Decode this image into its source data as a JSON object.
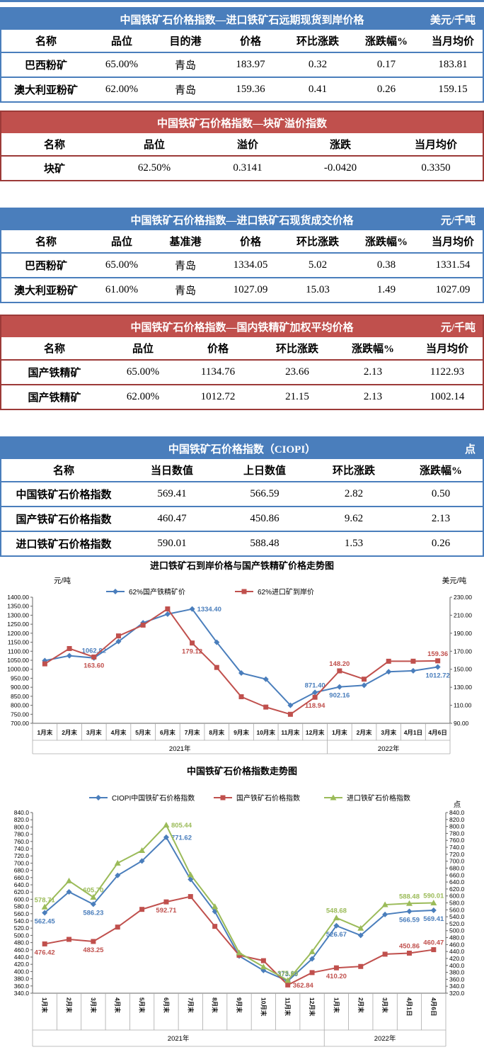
{
  "colors": {
    "blue_header": "#4a7ebc",
    "red_header": "#c0504d",
    "red_border": "#9c3a38",
    "series_blue": "#4a7ebc",
    "series_red": "#c0504d",
    "series_green": "#9bbb59"
  },
  "tables": [
    {
      "theme": "blue",
      "title": "中国铁矿石价格指数—进口铁矿石远期现货到岸价格",
      "unit": "美元/千吨",
      "columns": [
        "名称",
        "品位",
        "目的港",
        "价格",
        "环比涨跌",
        "涨跌幅%",
        "当月均价"
      ],
      "rows": [
        [
          "巴西粉矿",
          "65.00%",
          "青岛",
          "183.97",
          "0.32",
          "0.17",
          "183.81"
        ],
        [
          "澳大利亚粉矿",
          "62.00%",
          "青岛",
          "159.36",
          "0.41",
          "0.26",
          "159.15"
        ]
      ]
    },
    {
      "theme": "red",
      "title": "中国铁矿石价格指数—块矿溢价指数",
      "unit": "",
      "columns": [
        "名称",
        "品位",
        "溢价",
        "涨跌",
        "当月均价"
      ],
      "rows": [
        [
          "块矿",
          "62.50%",
          "0.3141",
          "-0.0420",
          "0.3350"
        ]
      ]
    },
    {
      "theme": "blue",
      "title": "中国铁矿石价格指数—进口铁矿石现货成交价格",
      "unit": "元/千吨",
      "columns": [
        "名称",
        "品位",
        "基准港",
        "价格",
        "环比涨跌",
        "涨跌幅%",
        "当月均价"
      ],
      "rows": [
        [
          "巴西粉矿",
          "65.00%",
          "青岛",
          "1334.05",
          "5.02",
          "0.38",
          "1331.54"
        ],
        [
          "澳大利亚粉矿",
          "61.00%",
          "青岛",
          "1027.09",
          "15.03",
          "1.49",
          "1027.09"
        ]
      ]
    },
    {
      "theme": "red",
      "title": "中国铁矿石价格指数—国内铁精矿加权平均价格",
      "unit": "元/千吨",
      "columns": [
        "名称",
        "品位",
        "价格",
        "环比涨跌",
        "涨跌幅%",
        "当月均价"
      ],
      "rows": [
        [
          "国产铁精矿",
          "65.00%",
          "1134.76",
          "23.66",
          "2.13",
          "1122.93"
        ],
        [
          "国产铁精矿",
          "62.00%",
          "1012.72",
          "21.15",
          "2.13",
          "1002.14"
        ]
      ]
    },
    {
      "theme": "blue",
      "title": "中国铁矿石价格指数（CIOPI）",
      "unit": "点",
      "columns": [
        "名称",
        "当日数值",
        "上日数值",
        "环比涨跌",
        "涨跌幅%"
      ],
      "rows": [
        [
          "中国铁矿石价格指数",
          "569.41",
          "566.59",
          "2.82",
          "0.50"
        ],
        [
          "国产铁矿石价格指数",
          "460.47",
          "450.86",
          "9.62",
          "2.13"
        ],
        [
          "进口铁矿石价格指数",
          "590.01",
          "588.48",
          "1.53",
          "0.26"
        ]
      ]
    }
  ],
  "chart_data": [
    {
      "type": "line",
      "title": "进口铁矿石到岸价格与国产铁精矿价格走势图",
      "grid": false,
      "legend_position": "top",
      "left_axis": {
        "unit": "元/吨",
        "min": 700,
        "max": 1400,
        "step": 50,
        "decimals": 2
      },
      "right_axis": {
        "unit": "美元/吨",
        "min": 90,
        "max": 230,
        "step": 20,
        "decimals": 2
      },
      "categories": [
        "1月末",
        "2月末",
        "3月末",
        "4月末",
        "5月末",
        "6月末",
        "7月末",
        "8月末",
        "9月末",
        "10月末",
        "11月末",
        "12月末",
        "1月末",
        "2月末",
        "3月末",
        "4月1日",
        "4月6日"
      ],
      "year_groups": [
        {
          "label": "2021年",
          "count": 12
        },
        {
          "label": "2022年",
          "count": 5
        }
      ],
      "series": [
        {
          "name": "62%国产铁精矿价",
          "color": "#4a7ebc",
          "marker": "diamond",
          "axis": "left",
          "values": [
            1048,
            1075,
            1062.82,
            1154,
            1258,
            1306,
            1334.4,
            1150,
            979,
            945,
            800,
            871.4,
            902.16,
            911,
            986,
            991.6,
            1012.72
          ],
          "point_labels": [
            {
              "i": 2,
              "text": "1062.82",
              "pos": "above"
            },
            {
              "i": 6,
              "text": "1334.40",
              "pos": "right"
            },
            {
              "i": 11,
              "text": "871.40",
              "pos": "above"
            },
            {
              "i": 12,
              "text": "902.16",
              "pos": "below"
            },
            {
              "i": 16,
              "text": "1012.72",
              "pos": "below"
            }
          ]
        },
        {
          "name": "62%进口矿到岸价",
          "color": "#c0504d",
          "marker": "square",
          "axis": "right",
          "values": [
            156,
            173,
            163.6,
            187,
            199,
            217,
            179.12,
            152,
            119.5,
            108,
            100,
            118.94,
            148.2,
            139,
            158.9,
            158.95,
            159.36
          ],
          "point_labels": [
            {
              "i": 2,
              "text": "163.60",
              "pos": "below"
            },
            {
              "i": 6,
              "text": "179.12",
              "pos": "below"
            },
            {
              "i": 11,
              "text": "118.94",
              "pos": "below"
            },
            {
              "i": 12,
              "text": "148.20",
              "pos": "above"
            },
            {
              "i": 16,
              "text": "159.36",
              "pos": "above"
            }
          ]
        }
      ]
    },
    {
      "type": "line",
      "title": "中国铁矿石价格指数走势图",
      "grid": false,
      "legend_position": "top",
      "left_axis": {
        "unit": "",
        "min": 340,
        "max": 840,
        "step": 20,
        "decimals": 1
      },
      "right_axis": {
        "unit": "点",
        "min": 320,
        "max": 840,
        "step": 20,
        "decimals": 1
      },
      "categories": [
        "1月末",
        "2月末",
        "3月末",
        "4月末",
        "5月末",
        "6月末",
        "7月末",
        "8月末",
        "9月末",
        "10月末",
        "11月末",
        "12月末",
        "1月末",
        "2月末",
        "3月末",
        "4月1日",
        "4月6日"
      ],
      "year_groups": [
        {
          "label": "2021年",
          "count": 12
        },
        {
          "label": "2022年",
          "count": 5
        }
      ],
      "series": [
        {
          "name": "CIOPI中国铁矿石价格指数",
          "color": "#4a7ebc",
          "marker": "diamond",
          "axis": "left",
          "values": [
            562.45,
            620.5,
            586.23,
            666,
            706,
            771.62,
            655,
            566,
            443,
            403,
            373.59,
            435,
            526.67,
            500,
            558,
            566.59,
            569.41
          ],
          "point_labels": [
            {
              "i": 0,
              "text": "562.45",
              "pos": "below"
            },
            {
              "i": 2,
              "text": "586.23",
              "pos": "below"
            },
            {
              "i": 5,
              "text": "771.62",
              "pos": "right"
            },
            {
              "i": 10,
              "text": "373.59",
              "pos": "above"
            },
            {
              "i": 12,
              "text": "526.67",
              "pos": "below"
            },
            {
              "i": 15,
              "text": "566.59",
              "pos": "below"
            },
            {
              "i": 16,
              "text": "569.41",
              "pos": "below"
            }
          ]
        },
        {
          "name": "国产铁矿石价格指数",
          "color": "#c0504d",
          "marker": "square",
          "axis": "left",
          "values": [
            476.42,
            489,
            483.25,
            523,
            572,
            592.71,
            607.5,
            525,
            445,
            430,
            362.84,
            397,
            410.2,
            414,
            448,
            450.86,
            460.47
          ],
          "point_labels": [
            {
              "i": 0,
              "text": "476.42",
              "pos": "below"
            },
            {
              "i": 2,
              "text": "483.25",
              "pos": "below"
            },
            {
              "i": 5,
              "text": "592.71",
              "pos": "below"
            },
            {
              "i": 10,
              "text": "362.84",
              "pos": "right"
            },
            {
              "i": 12,
              "text": "410.20",
              "pos": "below"
            },
            {
              "i": 15,
              "text": "450.86",
              "pos": "above"
            },
            {
              "i": 16,
              "text": "460.47",
              "pos": "above"
            }
          ]
        },
        {
          "name": "进口铁矿石价格指数",
          "color": "#9bbb59",
          "marker": "triangle",
          "axis": "left",
          "values": [
            578.71,
            651,
            605.7,
            700,
            735,
            805.44,
            668,
            580,
            452,
            413,
            375.63,
            455,
            548.68,
            520,
            585,
            588.48,
            590.01
          ],
          "point_labels": [
            {
              "i": 0,
              "text": "578.71",
              "pos": "above"
            },
            {
              "i": 2,
              "text": "605.70",
              "pos": "above"
            },
            {
              "i": 5,
              "text": "805.44",
              "pos": "right"
            },
            {
              "i": 10,
              "text": "375.63",
              "pos": "above"
            },
            {
              "i": 12,
              "text": "548.68",
              "pos": "above"
            },
            {
              "i": 15,
              "text": "588.48",
              "pos": "above"
            },
            {
              "i": 16,
              "text": "590.01",
              "pos": "above"
            }
          ]
        }
      ]
    }
  ]
}
